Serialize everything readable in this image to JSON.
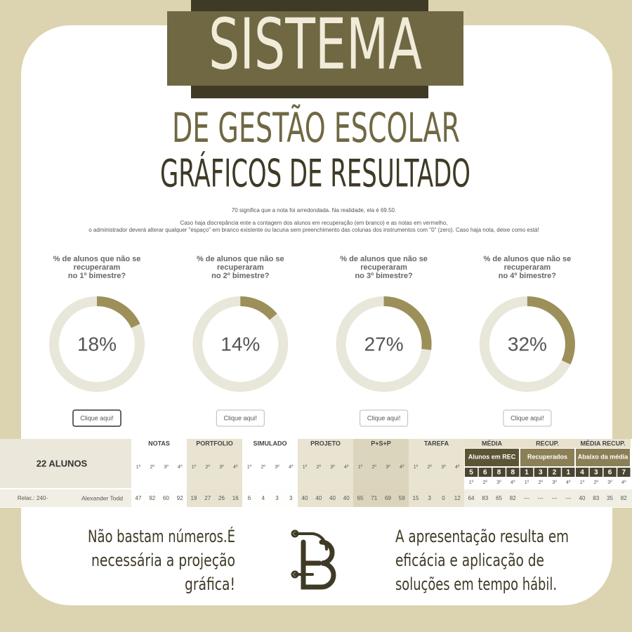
{
  "header": {
    "title": "SISTEMA",
    "subtitle": "DE GESTÃO ESCOLAR",
    "subtitle2": "GRÁFICOS DE RESULTADO"
  },
  "notes": [
    "70 significa que a nota foi arredondada. Na realidade, ela é 69.50.",
    "Caso haja discrepância ente a contagem dos alunos em recuperação (em branco) e as notas em vermelho,",
    "o administrador deverá alterar qualquer \"espaço\" em branco existente ou lacuna sem preenchimento das colunas dos instrumentos com \"0\" (zero). Caso haja nota, deixe como está!"
  ],
  "gauges": [
    {
      "question": [
        "% de alunos que não se",
        "recuperaram",
        "no 1º bimestre?"
      ],
      "value": 18,
      "value_label": "18%",
      "button": "Clique aqui!"
    },
    {
      "question": [
        "% de alunos que não se",
        "recuperaram",
        "no 2º bimestre?"
      ],
      "value": 14,
      "value_label": "14%",
      "button": "Clique aqui!"
    },
    {
      "question": [
        "% de alunos que não se",
        "recuperaram",
        "no 3º bimestre?"
      ],
      "value": 27,
      "value_label": "27%",
      "button": "Clique aqui!"
    },
    {
      "question": [
        "% de alunos que não se",
        "recuperaram",
        "no 4º bimestre?"
      ],
      "value": 32,
      "value_label": "32%",
      "button": "Clique aqui!"
    }
  ],
  "table": {
    "count_label": "22 ALUNOS",
    "groups": [
      {
        "name": "NOTAS",
        "terms": [
          "1º",
          "2º",
          "3º",
          "4º"
        ]
      },
      {
        "name": "PORTFOLIO",
        "terms": [
          "1º",
          "2º",
          "3º",
          "4º"
        ]
      },
      {
        "name": "SIMULADO",
        "terms": [
          "1º",
          "2º",
          "3º",
          "4º"
        ]
      },
      {
        "name": "PROJETO",
        "terms": [
          "1º",
          "2º",
          "3º",
          "4º"
        ]
      },
      {
        "name": "P+S+P",
        "terms": [
          "1º",
          "2º",
          "3º",
          "4º"
        ]
      },
      {
        "name": "TAREFA",
        "terms": [
          "1º",
          "2º",
          "3º",
          "4º"
        ]
      },
      {
        "name": "MÉDIA",
        "sublabel": "Alunos em REC",
        "counts": [
          5,
          6,
          8,
          8
        ],
        "terms": [
          "1º",
          "2º",
          "3º",
          "4º"
        ]
      },
      {
        "name": "RECUP.",
        "sublabel": "Recuperados",
        "counts": [
          1,
          3,
          2,
          1
        ],
        "terms": [
          "1º",
          "2º",
          "3º",
          "4º"
        ]
      },
      {
        "name": "MÉDIA RECUP.",
        "sublabel": "Abaixo da média",
        "counts": [
          4,
          3,
          6,
          7
        ],
        "terms": [
          "1º",
          "2º",
          "3º",
          "4º"
        ]
      }
    ],
    "row": {
      "label": "Relac.: 240-",
      "name": "Alexander Todd",
      "values": [
        47,
        92,
        60,
        92,
        19,
        27,
        26,
        16,
        6,
        4,
        3,
        3,
        40,
        40,
        40,
        40,
        65,
        71,
        69,
        59,
        15,
        3,
        0,
        12,
        64,
        83,
        65,
        82,
        "---",
        "---",
        "---",
        "---",
        40,
        83,
        35,
        82
      ]
    }
  },
  "footer": {
    "left": [
      "Não bastam números.É",
      "necessária a projeção",
      "gráfica!"
    ],
    "right": [
      "A apresentação resulta em",
      "eficácia e aplicação de",
      "soluções em tempo hábil."
    ]
  }
}
